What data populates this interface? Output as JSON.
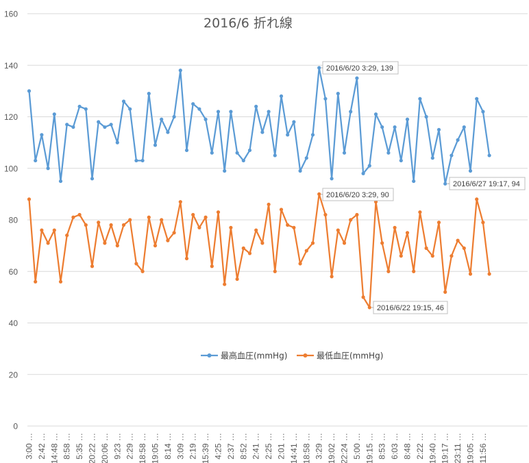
{
  "chart_data": {
    "type": "line",
    "title": "2016/6  折れ線",
    "xlabel": "",
    "ylabel": "",
    "ylim": [
      0,
      160
    ],
    "yticks": [
      0,
      20,
      40,
      60,
      80,
      100,
      120,
      140,
      160
    ],
    "grid": true,
    "legend_position": "middle-center",
    "tick_labels": [
      "3:00 …",
      "2:42 …",
      "14:48 …",
      "8:58 …",
      "5:35 …",
      "20:22 …",
      "20:06 …",
      "9:23 …",
      "2:29 …",
      "18:58 …",
      "19:05 …",
      "8:14 …",
      "3:09 …",
      "2:19 …",
      "15:39 …",
      "4:25 …",
      "2:37 …",
      "8:52 …",
      "2:41 …",
      "2:25 …",
      "2:01 …",
      "14:41 …",
      "18:58 …",
      "3:29 …",
      "19:02 …",
      "22:24 …",
      "5:00 …",
      "19:15 …",
      "8:53 …",
      "6:03 …",
      "8:48 …",
      "2:22 …",
      "19:40 …",
      "19:17 …",
      "23:11 …",
      "19:05 …",
      "11:56 …"
    ],
    "series": [
      {
        "name": "最高血圧(mmHg)",
        "color": "#5b9bd5",
        "values": [
          130,
          103,
          113,
          100,
          121,
          95,
          117,
          116,
          124,
          123,
          96,
          118,
          116,
          117,
          110,
          126,
          123,
          103,
          103,
          129,
          109,
          119,
          114,
          120,
          138,
          107,
          125,
          123,
          119,
          106,
          122,
          99,
          122,
          106,
          103,
          107,
          124,
          114,
          122,
          105,
          128,
          113,
          118,
          99,
          104,
          113,
          139,
          127,
          96,
          129,
          106,
          122,
          135,
          98,
          101,
          121,
          116,
          106,
          116,
          103,
          119,
          95,
          127,
          120,
          104,
          115,
          94,
          105,
          111,
          116,
          99,
          127,
          122,
          105
        ]
      },
      {
        "name": "最低血圧(mmHg)",
        "color": "#ed7d31",
        "values": [
          88,
          56,
          76,
          71,
          76,
          56,
          74,
          81,
          82,
          78,
          62,
          79,
          71,
          78,
          70,
          78,
          80,
          63,
          60,
          81,
          70,
          80,
          72,
          75,
          87,
          65,
          82,
          77,
          81,
          62,
          83,
          55,
          77,
          57,
          69,
          67,
          76,
          71,
          86,
          60,
          84,
          78,
          77,
          63,
          68,
          71,
          90,
          82,
          58,
          76,
          71,
          80,
          82,
          50,
          46,
          87,
          71,
          60,
          77,
          66,
          75,
          60,
          83,
          69,
          66,
          79,
          52,
          66,
          72,
          69,
          59,
          88,
          79,
          59
        ]
      }
    ],
    "annotations": [
      {
        "text": "2016/6/20 3:29, 139",
        "series": 0,
        "index": 46
      },
      {
        "text": "2016/6/20 3:29, 90",
        "series": 1,
        "index": 46
      },
      {
        "text": "2016/6/27 19:17, 94",
        "series": 0,
        "index": 66
      },
      {
        "text": "2016/6/22 19:15, 46",
        "series": 1,
        "index": 54
      }
    ]
  }
}
